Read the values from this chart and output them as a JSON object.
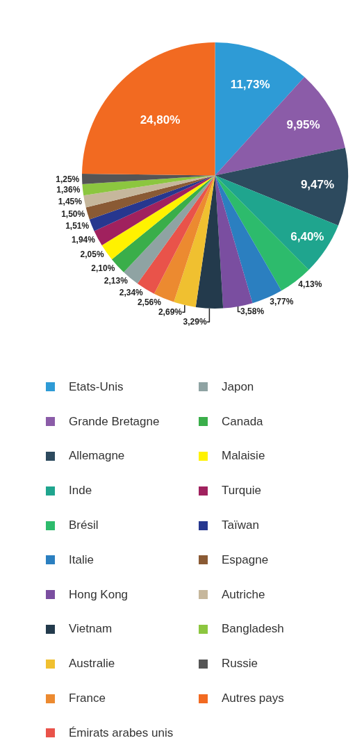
{
  "chart_data": {
    "type": "pie",
    "categories": [
      "Etats-Unis",
      "Grande Bretagne",
      "Allemagne",
      "Inde",
      "Brésil",
      "Italie",
      "Hong Kong",
      "Vietnam",
      "Australie",
      "France",
      "Émirats arabes unis",
      "Japon",
      "Canada",
      "Malaisie",
      "Turquie",
      "Taïwan",
      "Espagne",
      "Autriche",
      "Bangladesh",
      "Russie",
      "Autres pays"
    ],
    "values": [
      11.73,
      9.95,
      9.47,
      6.4,
      4.13,
      3.77,
      3.58,
      3.29,
      2.69,
      2.56,
      2.34,
      2.13,
      2.1,
      2.05,
      1.94,
      1.51,
      1.5,
      1.45,
      1.36,
      1.25,
      24.8
    ],
    "value_labels": [
      "11,73%",
      "9,95%",
      "9,47%",
      "6,40%",
      "4,13%",
      "3,77%",
      "3,58%",
      "3,29%",
      "2,69%",
      "2,56%",
      "2,34%",
      "2,13%",
      "2,10%",
      "2,05%",
      "1,94%",
      "1,51%",
      "1,50%",
      "1,45%",
      "1,36%",
      "1,25%",
      "24,80%"
    ],
    "colors": [
      "#2e9bd6",
      "#8b5ca8",
      "#2d4a5e",
      "#1fa58e",
      "#2dbb6c",
      "#2b7fc0",
      "#7a4ea0",
      "#233a4c",
      "#f0c030",
      "#ec8a30",
      "#e9534a",
      "#8fa3a3",
      "#3aae4a",
      "#fff200",
      "#a0215e",
      "#27378f",
      "#8a5a34",
      "#c6b79c",
      "#8cc63f",
      "#555555",
      "#f26a21"
    ],
    "legend": "bottom"
  }
}
